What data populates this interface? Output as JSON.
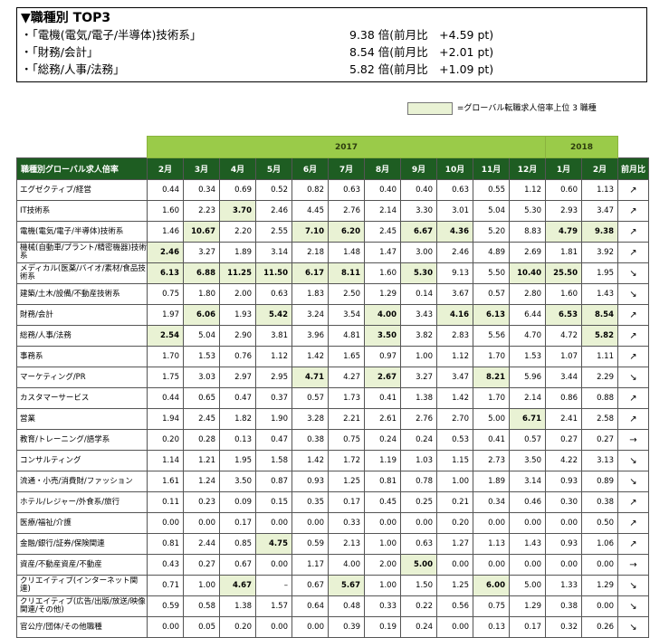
{
  "top3": {
    "title": "▼職種別 TOP3",
    "items": [
      {
        "label": "・「電機(電気/電子/半導体)技術系」",
        "value": "9.38 倍(前月比　+4.59 pt)"
      },
      {
        "label": "・「財務/会計」",
        "value": "8.54 倍(前月比　+2.01 pt)"
      },
      {
        "label": "・「総務/人事/法務」",
        "value": "5.82 倍(前月比　+1.09 pt)"
      }
    ]
  },
  "legend": {
    "text": "=グローバル転職求人倍率上位 3 職種",
    "color": "#e9f2d4"
  },
  "table": {
    "years": [
      "2017",
      "2018"
    ],
    "header_name": "職種別グローバル求人倍率",
    "months": [
      "2月",
      "3月",
      "4月",
      "5月",
      "6月",
      "7月",
      "8月",
      "9月",
      "10月",
      "11月",
      "12月",
      "1月",
      "2月"
    ],
    "change_header": "前月比",
    "rows": [
      {
        "name": "エグゼクティブ/経営",
        "values": [
          "0.44",
          "0.34",
          "0.69",
          "0.52",
          "0.82",
          "0.63",
          "0.40",
          "0.40",
          "0.63",
          "0.55",
          "1.12",
          "0.60",
          "1.13"
        ],
        "hl": [],
        "arrow": "↗"
      },
      {
        "name": "IT技術系",
        "values": [
          "1.60",
          "2.23",
          "3.70",
          "2.46",
          "4.45",
          "2.76",
          "2.14",
          "3.30",
          "3.01",
          "5.04",
          "5.30",
          "2.93",
          "3.47"
        ],
        "hl": [
          2
        ],
        "arrow": "↗"
      },
      {
        "name": "電機(電気/電子/半導体)技術系",
        "values": [
          "1.46",
          "10.67",
          "2.20",
          "2.55",
          "7.10",
          "6.20",
          "2.45",
          "6.67",
          "4.36",
          "5.20",
          "8.83",
          "4.79",
          "9.38"
        ],
        "hl": [
          1,
          4,
          5,
          7,
          8,
          11,
          12
        ],
        "arrow": "↗"
      },
      {
        "name": "機械(自動車/プラント/精密機器)技術系",
        "values": [
          "2.46",
          "3.27",
          "1.89",
          "3.14",
          "2.18",
          "1.48",
          "1.47",
          "3.00",
          "2.46",
          "4.89",
          "2.69",
          "1.81",
          "3.92"
        ],
        "hl": [
          0
        ],
        "arrow": "↗"
      },
      {
        "name": "メディカル(医薬/バイオ/素材/食品技術系",
        "values": [
          "6.13",
          "6.88",
          "11.25",
          "11.50",
          "6.17",
          "8.11",
          "1.60",
          "5.30",
          "9.13",
          "5.50",
          "10.40",
          "25.50",
          "1.95"
        ],
        "hl": [
          0,
          1,
          2,
          3,
          4,
          5,
          7,
          10,
          11
        ],
        "arrow": "↘"
      },
      {
        "name": "建築/土木/設備/不動産技術系",
        "values": [
          "0.75",
          "1.80",
          "2.00",
          "0.63",
          "1.83",
          "2.50",
          "1.29",
          "0.14",
          "3.67",
          "0.57",
          "2.80",
          "1.60",
          "1.43"
        ],
        "hl": [],
        "arrow": "↘"
      },
      {
        "name": "財務/会計",
        "values": [
          "1.97",
          "6.06",
          "1.93",
          "5.42",
          "3.24",
          "3.54",
          "4.00",
          "3.43",
          "4.16",
          "6.13",
          "6.44",
          "6.53",
          "8.54"
        ],
        "hl": [
          1,
          3,
          6,
          8,
          9,
          11,
          12
        ],
        "arrow": "↗"
      },
      {
        "name": "総務/人事/法務",
        "values": [
          "2.54",
          "5.04",
          "2.90",
          "3.81",
          "3.96",
          "4.81",
          "3.50",
          "3.82",
          "2.83",
          "5.56",
          "4.70",
          "4.72",
          "5.82"
        ],
        "hl": [
          0,
          6,
          12
        ],
        "arrow": "↗"
      },
      {
        "name": "事務系",
        "values": [
          "1.70",
          "1.53",
          "0.76",
          "1.12",
          "1.42",
          "1.65",
          "0.97",
          "1.00",
          "1.12",
          "1.70",
          "1.53",
          "1.07",
          "1.11"
        ],
        "hl": [],
        "arrow": "↗"
      },
      {
        "name": "マーケティング/PR",
        "values": [
          "1.75",
          "3.03",
          "2.97",
          "2.95",
          "4.71",
          "4.27",
          "2.67",
          "3.27",
          "3.47",
          "8.21",
          "5.96",
          "3.44",
          "2.29"
        ],
        "hl": [
          4,
          6,
          9
        ],
        "arrow": "↘"
      },
      {
        "name": "カスタマーサービス",
        "values": [
          "0.44",
          "0.65",
          "0.47",
          "0.37",
          "0.57",
          "1.73",
          "0.41",
          "1.38",
          "1.42",
          "1.70",
          "2.14",
          "0.86",
          "0.88"
        ],
        "hl": [],
        "arrow": "↗"
      },
      {
        "name": "営業",
        "values": [
          "1.94",
          "2.45",
          "1.82",
          "1.90",
          "3.28",
          "2.21",
          "2.61",
          "2.76",
          "2.70",
          "5.00",
          "6.71",
          "2.41",
          "2.58"
        ],
        "hl": [
          10
        ],
        "arrow": "↗"
      },
      {
        "name": "教育/トレーニング/語学系",
        "values": [
          "0.20",
          "0.28",
          "0.13",
          "0.47",
          "0.38",
          "0.75",
          "0.24",
          "0.24",
          "0.53",
          "0.41",
          "0.57",
          "0.27",
          "0.27"
        ],
        "hl": [],
        "arrow": "→"
      },
      {
        "name": "コンサルティング",
        "values": [
          "1.14",
          "1.21",
          "1.95",
          "1.58",
          "1.42",
          "1.72",
          "1.19",
          "1.03",
          "1.15",
          "2.73",
          "3.50",
          "4.22",
          "3.13"
        ],
        "hl": [],
        "arrow": "↘"
      },
      {
        "name": "流通・小売/消費財/ファッション",
        "values": [
          "1.61",
          "1.24",
          "3.50",
          "0.87",
          "0.93",
          "1.25",
          "0.81",
          "0.78",
          "1.00",
          "1.89",
          "3.14",
          "0.93",
          "0.89"
        ],
        "hl": [],
        "arrow": "↘"
      },
      {
        "name": "ホテル/レジャー/外食系/旅行",
        "values": [
          "0.11",
          "0.23",
          "0.09",
          "0.15",
          "0.35",
          "0.17",
          "0.45",
          "0.25",
          "0.21",
          "0.34",
          "0.46",
          "0.30",
          "0.38"
        ],
        "hl": [],
        "arrow": "↗"
      },
      {
        "name": "医療/福祉/介護",
        "values": [
          "0.00",
          "0.00",
          "0.17",
          "0.00",
          "0.00",
          "0.33",
          "0.00",
          "0.00",
          "0.20",
          "0.00",
          "0.00",
          "0.00",
          "0.50"
        ],
        "hl": [],
        "arrow": "↗"
      },
      {
        "name": "金融/銀行/証券/保険関連",
        "values": [
          "0.81",
          "2.44",
          "0.85",
          "4.75",
          "0.59",
          "2.13",
          "1.00",
          "0.63",
          "1.27",
          "1.13",
          "1.43",
          "0.93",
          "1.06"
        ],
        "hl": [
          3
        ],
        "arrow": "↗"
      },
      {
        "name": "資産/不動産資産/不動産",
        "values": [
          "0.43",
          "0.27",
          "0.67",
          "0.00",
          "1.17",
          "4.00",
          "2.00",
          "5.00",
          "0.00",
          "0.00",
          "0.00",
          "0.00",
          "0.00"
        ],
        "hl": [
          7
        ],
        "arrow": "→"
      },
      {
        "name": "クリエイティブ(インターネット関連)",
        "values": [
          "0.71",
          "1.00",
          "4.67",
          "–",
          "0.67",
          "5.67",
          "1.00",
          "1.50",
          "1.25",
          "6.00",
          "5.00",
          "1.33",
          "1.29"
        ],
        "hl": [
          2,
          5,
          9
        ],
        "arrow": "↘"
      },
      {
        "name": "クリエイティブ(広告/出版/放送/映像関連/その他)",
        "values": [
          "0.59",
          "0.58",
          "1.38",
          "1.57",
          "0.64",
          "0.48",
          "0.33",
          "0.22",
          "0.56",
          "0.75",
          "1.29",
          "0.38",
          "0.00"
        ],
        "hl": [],
        "arrow": "↘"
      },
      {
        "name": "官公庁/団体/その他職種",
        "values": [
          "0.00",
          "0.05",
          "0.20",
          "0.00",
          "0.00",
          "0.39",
          "0.19",
          "0.24",
          "0.00",
          "0.13",
          "0.17",
          "0.32",
          "0.26"
        ],
        "hl": [],
        "arrow": "↘"
      }
    ]
  }
}
